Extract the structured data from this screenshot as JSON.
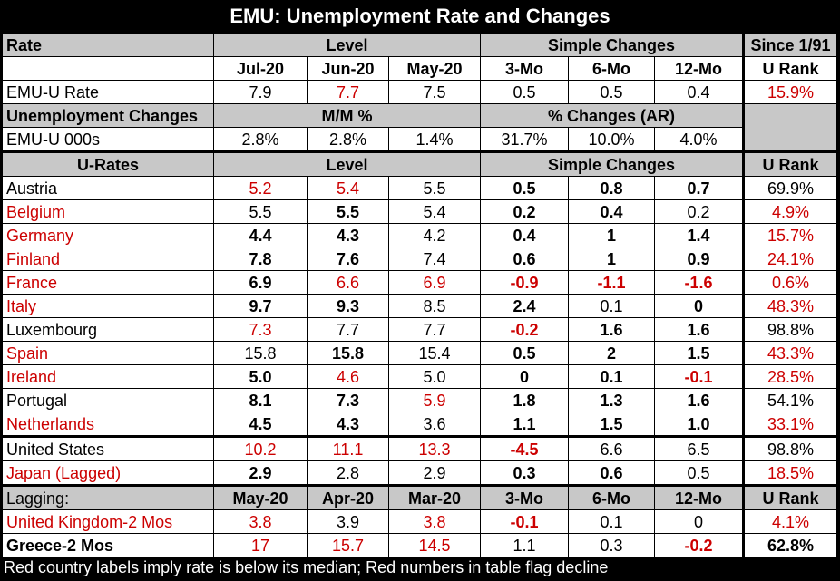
{
  "title": "EMU: Unemployment Rate and Changes",
  "colors": {
    "red": "#cc0000",
    "header_gray": "#c8c8c8",
    "background": "#000000"
  },
  "headers": {
    "rate": "Rate",
    "level": "Level",
    "simple_changes": "Simple Changes",
    "since": "Since 1/91",
    "u_rank": "U Rank",
    "jul20": "Jul-20",
    "jun20": "Jun-20",
    "may20": "May-20",
    "m3": "3-Mo",
    "m6": "6-Mo",
    "m12": "12-Mo",
    "unemp_changes": "Unemployment Changes",
    "mm_pct": "M/M %",
    "pct_changes_ar": "% Changes (AR)",
    "u_rates": "U-Rates",
    "lagging": "Lagging:",
    "lag_may20": "May-20",
    "lag_apr20": "Apr-20",
    "lag_mar20": "Mar-20"
  },
  "emu_rate": {
    "label": "EMU-U Rate",
    "jul": "7.9",
    "jun": "7.7",
    "may": "7.5",
    "m3": "0.5",
    "m6": "0.5",
    "m12": "0.4",
    "rank": "15.9%"
  },
  "emu_000s": {
    "label": "EMU-U 000s",
    "jul": "2.8%",
    "jun": "2.8%",
    "may": "1.4%",
    "m3": "31.7%",
    "m6": "10.0%",
    "m12": "4.0%"
  },
  "countries": [
    {
      "label": "Austria",
      "jul": "5.2",
      "jun": "5.4",
      "may": "5.5",
      "m3": "0.5",
      "m6": "0.8",
      "m12": "0.7",
      "rank": "69.9%"
    },
    {
      "label": "Belgium",
      "jul": "5.5",
      "jun": "5.5",
      "may": "5.4",
      "m3": "0.2",
      "m6": "0.4",
      "m12": "0.2",
      "rank": "4.9%"
    },
    {
      "label": "Germany",
      "jul": "4.4",
      "jun": "4.3",
      "may": "4.2",
      "m3": "0.4",
      "m6": "1",
      "m12": "1.4",
      "rank": "15.7%"
    },
    {
      "label": "Finland",
      "jul": "7.8",
      "jun": "7.6",
      "may": "7.4",
      "m3": "0.6",
      "m6": "1",
      "m12": "0.9",
      "rank": "24.1%"
    },
    {
      "label": "France",
      "jul": "6.9",
      "jun": "6.6",
      "may": "6.9",
      "m3": "-0.9",
      "m6": "-1.1",
      "m12": "-1.6",
      "rank": "0.6%"
    },
    {
      "label": "Italy",
      "jul": "9.7",
      "jun": "9.3",
      "may": "8.5",
      "m3": "2.4",
      "m6": "0.1",
      "m12": "0",
      "rank": "48.3%"
    },
    {
      "label": "Luxembourg",
      "jul": "7.3",
      "jun": "7.7",
      "may": "7.7",
      "m3": "-0.2",
      "m6": "1.6",
      "m12": "1.6",
      "rank": "98.8%"
    },
    {
      "label": "Spain",
      "jul": "15.8",
      "jun": "15.8",
      "may": "15.4",
      "m3": "0.5",
      "m6": "2",
      "m12": "1.5",
      "rank": "43.3%"
    },
    {
      "label": "Ireland",
      "jul": "5.0",
      "jun": "4.6",
      "may": "5.0",
      "m3": "0",
      "m6": "0.1",
      "m12": "-0.1",
      "rank": "28.5%"
    },
    {
      "label": "Portugal",
      "jul": "8.1",
      "jun": "7.3",
      "may": "5.9",
      "m3": "1.8",
      "m6": "1.3",
      "m12": "1.6",
      "rank": "54.1%"
    },
    {
      "label": "Netherlands",
      "jul": "4.5",
      "jun": "4.3",
      "may": "3.6",
      "m3": "1.1",
      "m6": "1.5",
      "m12": "1.0",
      "rank": "33.1%"
    }
  ],
  "others": [
    {
      "label": "United States",
      "jul": "10.2",
      "jun": "11.1",
      "may": "13.3",
      "m3": "-4.5",
      "m6": "6.6",
      "m12": "6.5",
      "rank": "98.8%"
    },
    {
      "label": "Japan (Lagged)",
      "jul": "2.9",
      "jun": "2.8",
      "may": "2.9",
      "m3": "0.3",
      "m6": "0.6",
      "m12": "0.5",
      "rank": "18.5%"
    }
  ],
  "lagging": [
    {
      "label": "United Kingdom-2 Mos",
      "jul": "3.8",
      "jun": "3.9",
      "may": "3.8",
      "m3": "-0.1",
      "m6": "0.1",
      "m12": "0",
      "rank": "4.1%"
    },
    {
      "label": "Greece-2 Mos",
      "jul": "17",
      "jun": "15.7",
      "may": "14.5",
      "m3": "1.1",
      "m6": "0.3",
      "m12": "-0.2",
      "rank": "62.8%"
    }
  ],
  "footer": "Red country labels imply rate is below its median; Red numbers in table flag decline"
}
